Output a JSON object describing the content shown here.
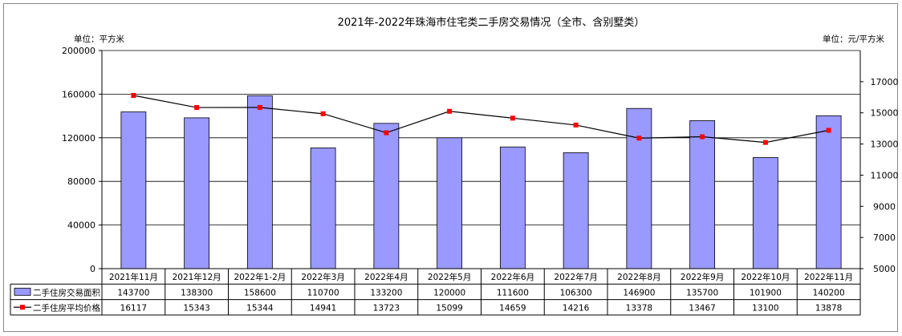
{
  "chart_data": {
    "type": "bar",
    "title": "2021年-2022年珠海市住宅类二手房交易情况（全市、含别墅类）",
    "left_unit": "单位：平方米",
    "right_unit": "单位：元/平方米",
    "categories": [
      "2021年11月",
      "2021年12月",
      "2022年1-2月",
      "2022年3月",
      "2022年4月",
      "2022年5月",
      "2022年6月",
      "2022年7月",
      "2022年8月",
      "2022年9月",
      "2022年10月",
      "2022年11月"
    ],
    "series": [
      {
        "name": "二手住房交易面积",
        "type": "bar",
        "axis": "left",
        "color": "#9999ff",
        "values": [
          143700,
          138300,
          158600,
          110700,
          133200,
          120000,
          111600,
          106300,
          146900,
          135700,
          101900,
          140200
        ]
      },
      {
        "name": "二手住房平均价格",
        "type": "line",
        "axis": "right",
        "color": "#ff0000",
        "values": [
          16117,
          15343,
          15344,
          14941,
          13723,
          15099,
          14659,
          14216,
          13378,
          13467,
          13100,
          13878
        ]
      }
    ],
    "ylim_left": [
      0,
      200000
    ],
    "yticks_left": [
      "0",
      "40000",
      "80000",
      "120000",
      "160000",
      "200000"
    ],
    "ylim_right": [
      5000,
      19000
    ],
    "yticks_right": [
      "5000",
      "7000",
      "9000",
      "11000",
      "13000",
      "15000",
      "17000"
    ],
    "grid": true,
    "legend": "data-table"
  }
}
